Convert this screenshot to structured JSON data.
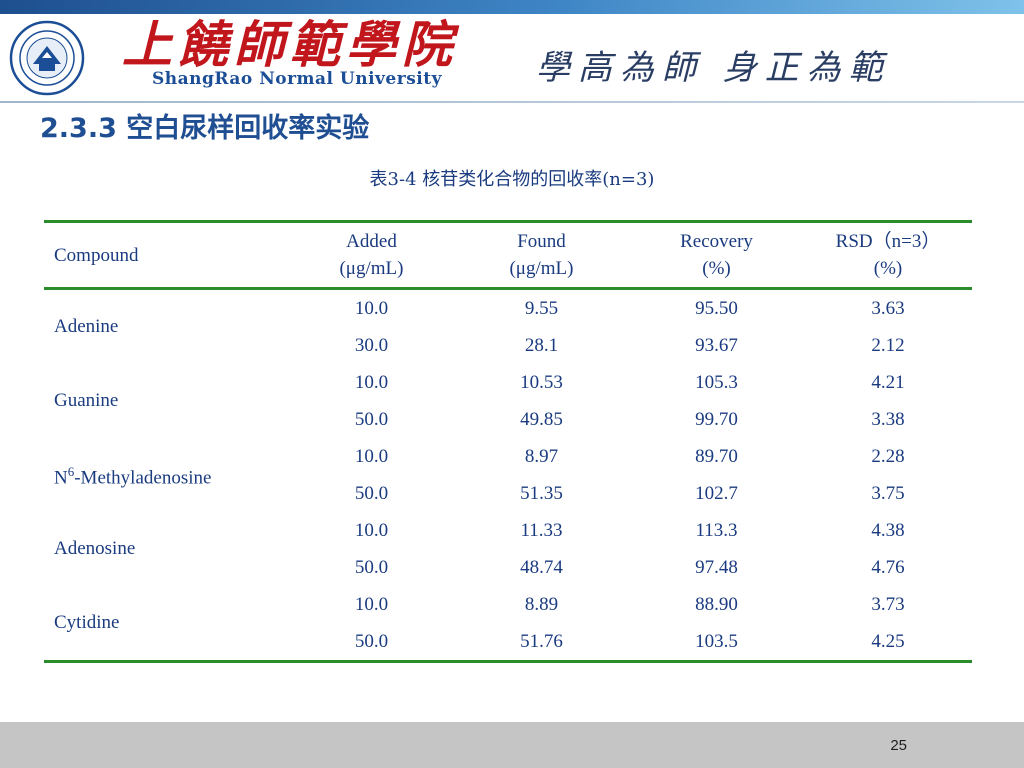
{
  "header": {
    "school_name_cn": "上饒師範學院",
    "school_name_en": "ShangRao Normal University",
    "motto": "學高為師 身正為範",
    "emblem_icon": "university-emblem-icon"
  },
  "slide": {
    "title": "2.3.3 空白尿样回收率实验",
    "page_number": "25"
  },
  "table": {
    "caption": "表3-4  核苷类化合物的回收率(n=3)",
    "headers": [
      {
        "line1": "Compound",
        "line2": ""
      },
      {
        "line1": "Added",
        "line2": "(μg/mL)"
      },
      {
        "line1": "Found",
        "line2": "(μg/mL)"
      },
      {
        "line1": "Recovery",
        "line2": "(%)"
      },
      {
        "line1": "RSD（n=3）",
        "line2": "(%)"
      }
    ],
    "compounds": [
      {
        "name": "Adenine",
        "rows": [
          {
            "added": "10.0",
            "found": "9.55",
            "recovery": "95.50",
            "rsd": "3.63"
          },
          {
            "added": "30.0",
            "found": "28.1",
            "recovery": "93.67",
            "rsd": "2.12"
          }
        ]
      },
      {
        "name": "Guanine",
        "rows": [
          {
            "added": "10.0",
            "found": "10.53",
            "recovery": "105.3",
            "rsd": "4.21"
          },
          {
            "added": "50.0",
            "found": "49.85",
            "recovery": "99.70",
            "rsd": "3.38"
          }
        ]
      },
      {
        "name_prefix": "N",
        "name_sup": "6",
        "name_suffix": "-Methyladenosine",
        "rows": [
          {
            "added": "10.0",
            "found": "8.97",
            "recovery": "89.70",
            "rsd": "2.28"
          },
          {
            "added": "50.0",
            "found": "51.35",
            "recovery": "102.7",
            "rsd": "3.75"
          }
        ]
      },
      {
        "name": "Adenosine",
        "rows": [
          {
            "added": "10.0",
            "found": "11.33",
            "recovery": "113.3",
            "rsd": "4.38"
          },
          {
            "added": "50.0",
            "found": "48.74",
            "recovery": "97.48",
            "rsd": "4.76"
          }
        ]
      },
      {
        "name": "Cytidine",
        "rows": [
          {
            "added": "10.0",
            "found": "8.89",
            "recovery": "88.90",
            "rsd": "3.73"
          },
          {
            "added": "50.0",
            "found": "51.76",
            "recovery": "103.5",
            "rsd": "4.25"
          }
        ]
      }
    ]
  }
}
